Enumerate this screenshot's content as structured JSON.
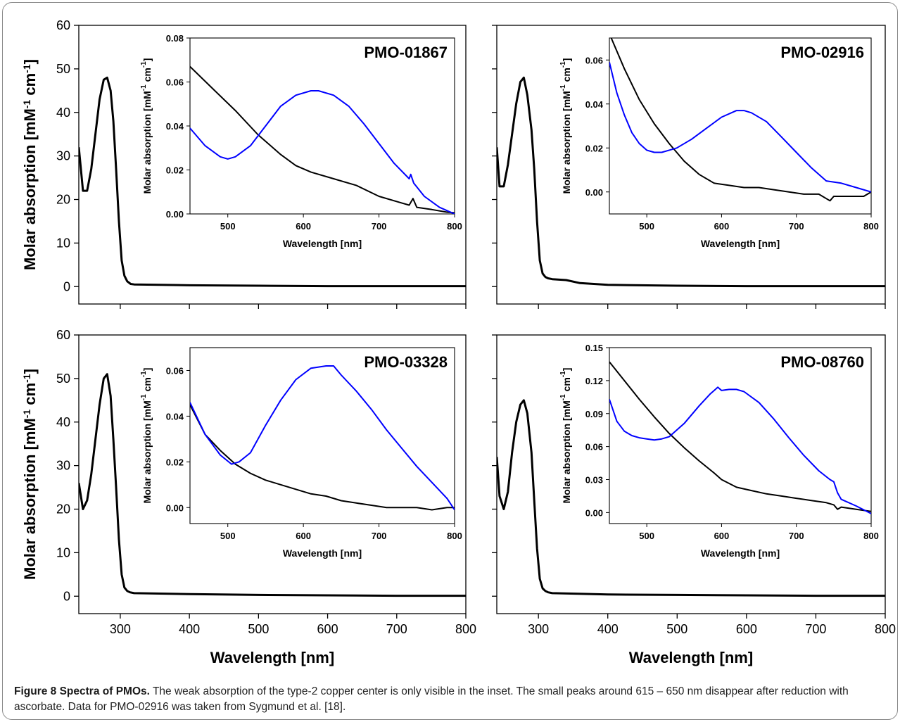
{
  "caption": {
    "lead": "Figure 8 Spectra of PMOs.",
    "text": " The weak absorption of the type-2 copper center is only visible in the inset. The small peaks around 615 – 650 nm disappear after reduction with ascorbate. Data for PMO-02916 was taken from Sygmund et al. [18]."
  },
  "colors": {
    "line_black": "#000000",
    "line_blue": "#0000ff",
    "frame": "#8a8a8a"
  },
  "chart_data": [
    {
      "type": "line",
      "panel": "top-left",
      "xlabel": "",
      "ylabel": "Molar absorption [mM-1 cm-1]",
      "ylabel_parts": [
        "Molar absorption [mM",
        "-1",
        " cm",
        "-1",
        "]"
      ],
      "xlim": [
        240,
        800
      ],
      "ylim": [
        -4,
        60
      ],
      "y_ticks": [
        0,
        10,
        20,
        30,
        40,
        50,
        60
      ],
      "x_ticks": [
        300,
        400,
        500,
        600,
        700,
        800
      ],
      "x_tick_labels_shown": false,
      "series": [
        {
          "color": "#000000",
          "x": [
            240,
            246,
            252,
            258,
            264,
            270,
            276,
            281,
            286,
            290,
            294,
            298,
            302,
            306,
            310,
            315,
            320,
            400,
            500,
            600,
            700,
            800
          ],
          "y": [
            32,
            22,
            22,
            27,
            35,
            43,
            47.5,
            48,
            45,
            38,
            27,
            15,
            6,
            2.5,
            1.2,
            0.6,
            0.5,
            0.3,
            0.2,
            0.1,
            0.1,
            0.1
          ]
        }
      ],
      "inset": {
        "title": "PMO-01867",
        "xlabel": "Wavelength [nm]",
        "ylabel": "Molar absorption [mM-1 cm-1]",
        "ylabel_parts": [
          "Molar absorption [mM",
          "-1",
          " cm",
          "-1",
          "]"
        ],
        "xlim": [
          450,
          800
        ],
        "ylim": [
          0,
          0.08
        ],
        "x_ticks": [
          500,
          600,
          700,
          800
        ],
        "x_tick_labels": [
          "500",
          "600",
          "700",
          "800"
        ],
        "y_ticks": [
          0,
          0.02,
          0.04,
          0.06,
          0.08
        ],
        "y_tick_labels": [
          "0.00",
          "0.02",
          "0.04",
          "0.06",
          "0.08"
        ],
        "series": [
          {
            "color": "#000000",
            "x": [
              450,
              480,
              510,
              540,
              570,
              590,
              610,
              640,
              670,
              700,
              730,
              740,
              745,
              750,
              770,
              790,
              800
            ],
            "y": [
              0.067,
              0.057,
              0.047,
              0.036,
              0.027,
              0.022,
              0.019,
              0.016,
              0.013,
              0.008,
              0.005,
              0.004,
              0.007,
              0.003,
              0.002,
              0.0008,
              0.0005
            ]
          },
          {
            "color": "#0000ff",
            "x": [
              450,
              470,
              490,
              500,
              510,
              530,
              550,
              570,
              590,
              610,
              620,
              640,
              660,
              680,
              700,
              720,
              740,
              742,
              746,
              760,
              780,
              800
            ],
            "y": [
              0.039,
              0.031,
              0.026,
              0.025,
              0.026,
              0.031,
              0.04,
              0.049,
              0.054,
              0.056,
              0.056,
              0.054,
              0.049,
              0.041,
              0.032,
              0.023,
              0.016,
              0.018,
              0.014,
              0.008,
              0.003,
              0.0
            ]
          }
        ]
      }
    },
    {
      "type": "line",
      "panel": "top-right",
      "xlabel": "",
      "ylabel": "",
      "xlim": [
        240,
        800
      ],
      "ylim": [
        -4,
        60
      ],
      "y_ticks": [
        0,
        10,
        20,
        30,
        40,
        50,
        60
      ],
      "y_tick_labels_shown": false,
      "x_ticks": [
        300,
        400,
        500,
        600,
        700,
        800
      ],
      "x_tick_labels_shown": false,
      "series": [
        {
          "color": "#000000",
          "x": [
            240,
            244,
            250,
            256,
            262,
            268,
            274,
            279,
            284,
            290,
            294,
            298,
            302,
            306,
            310,
            314,
            320,
            340,
            360,
            400,
            500,
            600,
            700,
            800
          ],
          "y": [
            32,
            23,
            23,
            28,
            35,
            42,
            47,
            48,
            44,
            36,
            27,
            15,
            6,
            3,
            2.2,
            1.9,
            1.7,
            1.5,
            0.8,
            0.4,
            0.2,
            0.1,
            0.1,
            0.1
          ]
        }
      ],
      "inset": {
        "title": "PMO-02916",
        "xlabel": "Wavelength [nm]",
        "ylabel": "Molar absorption [mM-1 cm-1]",
        "ylabel_parts": [
          "Molar absorption [mM",
          "-1",
          " cm",
          "-1",
          "]"
        ],
        "xlim": [
          450,
          800
        ],
        "ylim": [
          -0.01,
          0.07
        ],
        "x_ticks": [
          500,
          600,
          700,
          800
        ],
        "x_tick_labels": [
          "500",
          "600",
          "700",
          "800"
        ],
        "y_ticks": [
          0,
          0.02,
          0.04,
          0.06
        ],
        "y_tick_labels": [
          "0.00",
          "0.02",
          "0.04",
          "0.06"
        ],
        "series": [
          {
            "color": "#000000",
            "x": [
              450,
              470,
              490,
              510,
              530,
              550,
              570,
              590,
              610,
              630,
              650,
              670,
              690,
              710,
              730,
              745,
              750,
              770,
              790,
              800
            ],
            "y": [
              0.072,
              0.056,
              0.042,
              0.031,
              0.022,
              0.014,
              0.008,
              0.004,
              0.003,
              0.002,
              0.002,
              0.001,
              0.0,
              -0.001,
              -0.001,
              -0.004,
              -0.002,
              -0.002,
              -0.002,
              0.0
            ]
          },
          {
            "color": "#0000ff",
            "x": [
              450,
              460,
              470,
              480,
              490,
              500,
              510,
              520,
              530,
              540,
              560,
              580,
              600,
              620,
              630,
              640,
              660,
              680,
              700,
              720,
              740,
              760,
              780,
              800
            ],
            "y": [
              0.059,
              0.045,
              0.035,
              0.027,
              0.022,
              0.019,
              0.018,
              0.018,
              0.019,
              0.02,
              0.024,
              0.029,
              0.034,
              0.037,
              0.037,
              0.036,
              0.032,
              0.025,
              0.018,
              0.011,
              0.005,
              0.004,
              0.002,
              0.0
            ]
          }
        ]
      }
    },
    {
      "type": "line",
      "panel": "bottom-left",
      "xlabel": "Wavelength [nm]",
      "ylabel": "Molar absorption [mM-1 cm-1]",
      "ylabel_parts": [
        "Molar absorption [mM",
        "-1",
        " cm",
        "-1",
        "]"
      ],
      "xlim": [
        240,
        800
      ],
      "ylim": [
        -4,
        60
      ],
      "y_ticks": [
        0,
        10,
        20,
        30,
        40,
        50,
        60
      ],
      "x_ticks": [
        300,
        400,
        500,
        600,
        700,
        800
      ],
      "x_tick_labels": [
        "300",
        "400",
        "500",
        "600",
        "700",
        "800"
      ],
      "series": [
        {
          "color": "#000000",
          "x": [
            240,
            246,
            252,
            258,
            264,
            270,
            276,
            281,
            286,
            290,
            294,
            298,
            302,
            306,
            310,
            314,
            320,
            400,
            500,
            600,
            700,
            800
          ],
          "y": [
            26,
            20,
            22,
            28,
            36,
            44,
            50,
            51,
            46,
            36,
            25,
            13,
            5,
            2,
            1.2,
            0.9,
            0.7,
            0.5,
            0.3,
            0.2,
            0.1,
            0.1
          ]
        }
      ],
      "inset": {
        "title": "PMO-03328",
        "xlabel": "Wavelength [nm]",
        "ylabel": "Molar absorption [mM-1 cm-1]",
        "ylabel_parts": [
          "Molar absorption [mM",
          "-1",
          " cm",
          "-1",
          "]"
        ],
        "xlim": [
          450,
          800
        ],
        "ylim": [
          -0.007,
          0.07
        ],
        "x_ticks": [
          500,
          600,
          700,
          800
        ],
        "x_tick_labels": [
          "500",
          "600",
          "700",
          "800"
        ],
        "y_ticks": [
          0,
          0.02,
          0.04,
          0.06
        ],
        "y_tick_labels": [
          "0.00",
          "0.02",
          "0.04",
          "0.06"
        ],
        "series": [
          {
            "color": "#000000",
            "x": [
              450,
              470,
              490,
              510,
              530,
              550,
              570,
              590,
              610,
              630,
              650,
              670,
              690,
              710,
              730,
              750,
              770,
              790,
              800
            ],
            "y": [
              0.045,
              0.032,
              0.025,
              0.019,
              0.015,
              0.012,
              0.01,
              0.008,
              0.006,
              0.005,
              0.003,
              0.002,
              0.001,
              0.0,
              0.0,
              0.0,
              -0.001,
              0.0,
              0.0
            ]
          },
          {
            "color": "#0000ff",
            "x": [
              450,
              470,
              490,
              505,
              515,
              530,
              550,
              570,
              590,
              610,
              630,
              640,
              650,
              670,
              690,
              710,
              730,
              750,
              770,
              790,
              800
            ],
            "y": [
              0.046,
              0.032,
              0.023,
              0.019,
              0.02,
              0.024,
              0.036,
              0.047,
              0.056,
              0.061,
              0.062,
              0.062,
              0.058,
              0.051,
              0.043,
              0.034,
              0.026,
              0.018,
              0.011,
              0.004,
              -0.001
            ]
          }
        ]
      }
    },
    {
      "type": "line",
      "panel": "bottom-right",
      "xlabel": "Wavelength [nm]",
      "ylabel": "",
      "xlim": [
        240,
        800
      ],
      "ylim": [
        -4,
        60
      ],
      "y_ticks": [
        0,
        10,
        20,
        30,
        40,
        50,
        60
      ],
      "y_tick_labels_shown": false,
      "x_ticks": [
        300,
        400,
        500,
        600,
        700,
        800
      ],
      "x_tick_labels": [
        "300",
        "400",
        "500",
        "600",
        "700",
        "800"
      ],
      "series": [
        {
          "color": "#000000",
          "x": [
            240,
            244,
            250,
            256,
            262,
            268,
            274,
            279,
            284,
            290,
            294,
            298,
            302,
            306,
            310,
            314,
            320,
            400,
            500,
            600,
            700,
            800
          ],
          "y": [
            32,
            23,
            20,
            24,
            33,
            40,
            44,
            45,
            42,
            33,
            22,
            11,
            4,
            1.8,
            1.2,
            0.9,
            0.7,
            0.4,
            0.3,
            0.2,
            0.1,
            0.1
          ]
        }
      ],
      "inset": {
        "title": "PMO-08760",
        "xlabel": "Wavelength [nm]",
        "ylabel": "Molar absorption [mM-1 cm-1]",
        "ylabel_parts": [
          "Molar absorption [mM",
          "-1",
          " cm",
          "-1",
          "]"
        ],
        "xlim": [
          450,
          800
        ],
        "ylim": [
          -0.01,
          0.15
        ],
        "x_ticks": [
          500,
          600,
          700,
          800
        ],
        "x_tick_labels": [
          "500",
          "600",
          "700",
          "800"
        ],
        "y_ticks": [
          0,
          0.03,
          0.06,
          0.09,
          0.12,
          0.15
        ],
        "y_tick_labels": [
          "0.00",
          "0.03",
          "0.06",
          "0.09",
          "0.12",
          "0.15"
        ],
        "series": [
          {
            "color": "#000000",
            "x": [
              450,
              470,
              490,
              510,
              530,
              550,
              570,
              590,
              600,
              620,
              640,
              660,
              680,
              700,
              720,
              740,
              750,
              755,
              760,
              780,
              800
            ],
            "y": [
              0.137,
              0.12,
              0.103,
              0.087,
              0.072,
              0.059,
              0.047,
              0.036,
              0.03,
              0.023,
              0.02,
              0.017,
              0.015,
              0.013,
              0.011,
              0.009,
              0.007,
              0.003,
              0.005,
              0.003,
              0.001
            ]
          },
          {
            "color": "#0000ff",
            "x": [
              450,
              460,
              470,
              480,
              490,
              500,
              510,
              520,
              530,
              550,
              570,
              585,
              595,
              600,
              610,
              620,
              630,
              650,
              670,
              690,
              710,
              730,
              745,
              750,
              755,
              760,
              780,
              800
            ],
            "y": [
              0.103,
              0.083,
              0.074,
              0.07,
              0.068,
              0.067,
              0.066,
              0.067,
              0.069,
              0.081,
              0.097,
              0.108,
              0.114,
              0.111,
              0.112,
              0.112,
              0.11,
              0.1,
              0.085,
              0.068,
              0.052,
              0.038,
              0.03,
              0.028,
              0.018,
              0.012,
              0.006,
              -0.001
            ]
          }
        ]
      }
    }
  ]
}
